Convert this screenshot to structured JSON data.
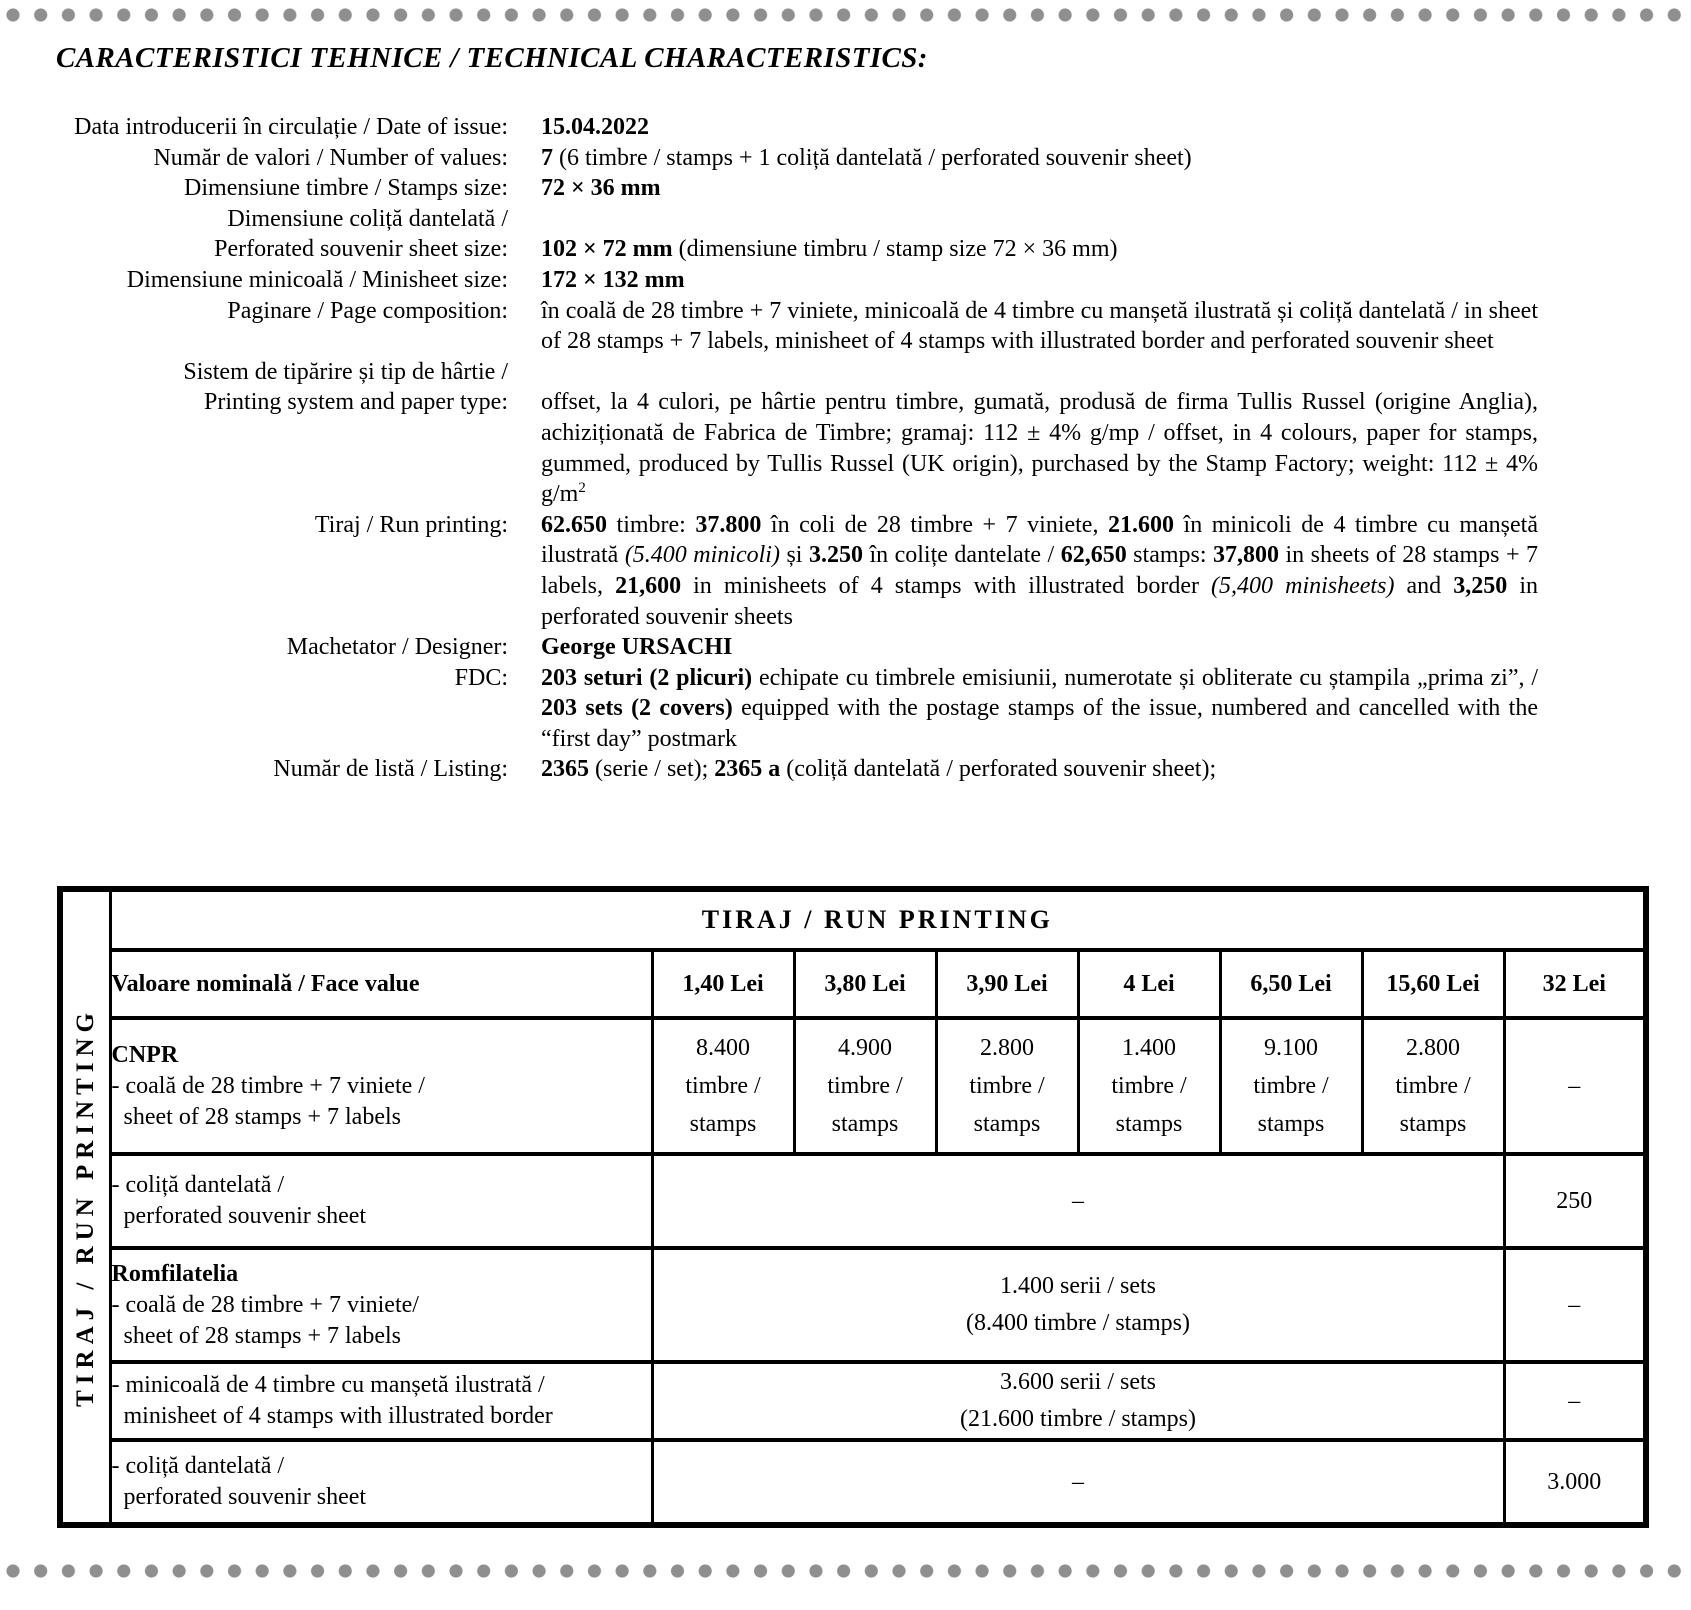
{
  "page": {
    "background": "#ffffff",
    "dot_color": "#8f8f8f",
    "text_color": "#000000"
  },
  "title": "CARACTERISTICI TEHNICE / TECHNICAL CHARACTERISTICS:",
  "info": {
    "rows": [
      {
        "label": [
          "Data introducerii în circulație / Date of issue:"
        ],
        "value": [
          {
            "t": "15.04.2022",
            "b": true
          }
        ]
      },
      {
        "label": [
          "Număr de valori / Number of values:"
        ],
        "value": [
          {
            "t": "7",
            "b": true
          },
          {
            "t": " (6 timbre / stamps + 1 coliță dantelată / perforated souvenir sheet)"
          }
        ]
      },
      {
        "label": [
          "Dimensiune timbre / Stamps size:"
        ],
        "value": [
          {
            "t": "72 × 36 mm",
            "b": true
          }
        ]
      },
      {
        "label": [
          "Dimensiune coliță dantelată /",
          "Perforated souvenir sheet size:"
        ],
        "value": [
          {
            "t": "102 × 72 mm",
            "b": true
          },
          {
            "t": " (dimensiune timbru / stamp size 72 × 36 mm)"
          }
        ]
      },
      {
        "label": [
          "Dimensiune minicoală / Minisheet size:"
        ],
        "value": [
          {
            "t": "172 × 132 mm",
            "b": true
          }
        ]
      },
      {
        "label": [
          "Paginare / Page composition:"
        ],
        "value": [
          {
            "t": "în coală de 28 timbre + 7 viniete, minicoală de 4 timbre cu manșetă ilustrată și coliță dantelată / in sheet of 28 stamps + 7 labels, minisheet of 4 stamps with illustrated border and perforated souvenir sheet"
          }
        ]
      },
      {
        "label": [
          "Sistem de tipărire și tip de hârtie /",
          "Printing system and paper type:"
        ],
        "value": [
          {
            "t": "offset, la 4 culori, pe hârtie pentru timbre, gumată, produsă de firma Tullis Russel (origine Anglia), achiziționată de Fabrica de Timbre; gramaj: 112 ± 4% g/mp / offset, in 4 colours, paper for stamps, gummed, produced by Tullis Russel (UK origin), purchased by the Stamp Factory; weight: 112 ± 4% g/m"
          },
          {
            "t": "2",
            "sup": true
          }
        ]
      },
      {
        "label": [
          "Tiraj / Run printing:"
        ],
        "value": [
          {
            "t": "62.650",
            "b": true
          },
          {
            "t": " timbre: "
          },
          {
            "t": "37.800",
            "b": true
          },
          {
            "t": " în coli de 28 timbre + 7 viniete, "
          },
          {
            "t": "21.600",
            "b": true
          },
          {
            "t": " în minicoli de 4 timbre cu manșetă ilustrată "
          },
          {
            "t": "(5.400 minicoli)",
            "i": true
          },
          {
            "t": " și "
          },
          {
            "t": "3.250",
            "b": true
          },
          {
            "t": " în colițe dantelate / "
          },
          {
            "t": "62,650",
            "b": true
          },
          {
            "t": " stamps: "
          },
          {
            "t": "37,800",
            "b": true
          },
          {
            "t": " in sheets of 28 stamps + 7 labels, "
          },
          {
            "t": "21,600",
            "b": true
          },
          {
            "t": " in minisheets of 4 stamps with illustrated border "
          },
          {
            "t": "(5,400 minisheets)",
            "i": true
          },
          {
            "t": " and "
          },
          {
            "t": "3,250",
            "b": true
          },
          {
            "t": " in perforated souvenir sheets"
          }
        ]
      },
      {
        "label": [
          "Machetator / Designer:"
        ],
        "value": [
          {
            "t": "George URSACHI",
            "b": true
          }
        ]
      },
      {
        "label": [
          "FDC:"
        ],
        "value": [
          {
            "t": "203 seturi (2 plicuri)",
            "b": true
          },
          {
            "t": " echipate cu timbrele emisiunii, numerotate și obliterate cu ștampila „prima zi”, / "
          },
          {
            "t": "203 sets (2 covers)",
            "b": true
          },
          {
            "t": " equipped with the postage stamps of the issue, numbered and cancelled with the “first day” postmark"
          }
        ]
      },
      {
        "label": [
          "Număr de listă / Listing:"
        ],
        "value": [
          {
            "t": "2365",
            "b": true
          },
          {
            "t": " (serie / set); "
          },
          {
            "t": "2365 a",
            "b": true
          },
          {
            "t": " (coliță dantelată / perforated souvenir sheet);"
          }
        ]
      }
    ]
  },
  "table": {
    "side_label": "TIRAJ / RUN PRINTING",
    "title": "TIRAJ / RUN PRINTING",
    "col_header": "Valoare nominală / Face value",
    "face_values": [
      "1,40 Lei",
      "3,80 Lei",
      "3,90 Lei",
      "4 Lei",
      "6,50 Lei",
      "15,60 Lei",
      "32 Lei"
    ],
    "rows": {
      "cnpr": {
        "label": [
          {
            "t": "CNPR",
            "b": true
          },
          {
            "t": "- coală de 28 timbre + 7 viniete /",
            "nl": true
          },
          {
            "t": "  sheet of 28 stamps + 7 labels",
            "nl": true
          }
        ],
        "cells": [
          "8.400\ntimbre /\nstamps",
          "4.900\ntimbre /\nstamps",
          "2.800\ntimbre /\nstamps",
          "1.400\ntimbre /\nstamps",
          "9.100\ntimbre /\nstamps",
          "2.800\ntimbre /\nstamps"
        ],
        "last": "–"
      },
      "cnpr_sheet": {
        "label": [
          {
            "t": "- coliță dantelată /"
          },
          {
            "t": "  perforated souvenir sheet",
            "nl": true
          }
        ],
        "merged": "–",
        "last": "250"
      },
      "romfilatelia": {
        "label": [
          {
            "t": "Romfilatelia",
            "b": true
          },
          {
            "t": "- coală de 28 timbre + 7 viniete/",
            "nl": true
          },
          {
            "t": "  sheet of 28 stamps + 7 labels",
            "nl": true
          }
        ],
        "merged": "1.400 serii / sets\n(8.400 timbre / stamps)",
        "last": "–"
      },
      "romfil_minisheet": {
        "label": [
          {
            "t": "- minicoală de 4 timbre cu manșetă ilustrată /"
          },
          {
            "t": "  minisheet of 4 stamps with illustrated border",
            "nl": true
          }
        ],
        "merged": "3.600 serii / sets\n(21.600 timbre / stamps)",
        "last": "–"
      },
      "romfil_sheet": {
        "label": [
          {
            "t": "- coliță dantelată /"
          },
          {
            "t": "  perforated souvenir sheet",
            "nl": true
          }
        ],
        "merged": "–",
        "last": "3.000"
      }
    }
  }
}
